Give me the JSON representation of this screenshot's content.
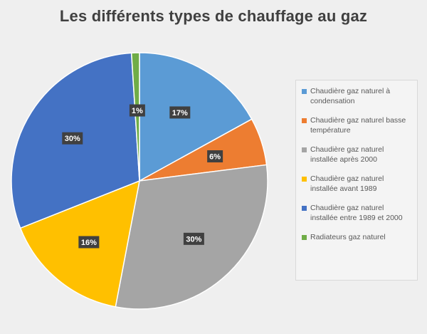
{
  "chart_data": {
    "type": "pie",
    "title": "Les différents types de chauffage au gaz",
    "slices": [
      {
        "label": "Chaudière gaz naturel à condensation",
        "value": 17,
        "data_label": "17%",
        "color": "#5b9bd5"
      },
      {
        "label": "Chaudière gaz naturel basse température",
        "value": 6,
        "data_label": "6%",
        "color": "#ed7d31"
      },
      {
        "label": "Chaudière gaz naturel installée après 2000",
        "value": 30,
        "data_label": "30%",
        "color": "#a5a5a5"
      },
      {
        "label": "Chaudière gaz naturel installée avant 1989",
        "value": 16,
        "data_label": "16%",
        "color": "#ffc000"
      },
      {
        "label": "Chaudière gaz naturel installée entre 1989 et 2000",
        "value": 30,
        "data_label": "30%",
        "color": "#4472c4"
      },
      {
        "label": "Radiateurs gaz naturel",
        "value": 1,
        "data_label": "1%",
        "color": "#70ad47"
      }
    ],
    "start_angle": "12 o'clock",
    "direction": "clockwise",
    "legend_position": "right"
  }
}
